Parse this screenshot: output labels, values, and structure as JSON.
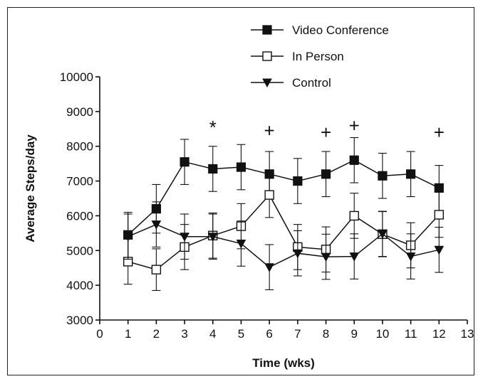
{
  "chart_data": {
    "type": "line",
    "title": "",
    "xlabel": "Time (wks)",
    "ylabel": "Average Steps/day",
    "xlim": [
      0,
      13
    ],
    "ylim": [
      3000,
      10000
    ],
    "x_ticks": [
      0,
      1,
      2,
      3,
      4,
      5,
      6,
      7,
      8,
      9,
      10,
      11,
      12,
      13
    ],
    "y_ticks": [
      3000,
      4000,
      5000,
      6000,
      7000,
      8000,
      9000,
      10000
    ],
    "grid": false,
    "legend_position": "top-right",
    "x": [
      1,
      2,
      3,
      4,
      5,
      6,
      7,
      8,
      9,
      10,
      11,
      12
    ],
    "series": [
      {
        "name": "Video Conference",
        "marker": "filled-square",
        "values": [
          5450,
          6200,
          7550,
          7350,
          7400,
          7200,
          7000,
          7200,
          7600,
          7150,
          7200,
          6800
        ],
        "errors": [
          650,
          700,
          650,
          650,
          650,
          650,
          650,
          650,
          650,
          650,
          650,
          650
        ]
      },
      {
        "name": "In Person",
        "marker": "open-square",
        "values": [
          4680,
          4450,
          5100,
          5430,
          5700,
          6600,
          5100,
          5030,
          6000,
          5470,
          5150,
          6030
        ],
        "errors": [
          650,
          600,
          650,
          650,
          650,
          650,
          650,
          650,
          650,
          650,
          650,
          650
        ]
      },
      {
        "name": "Control",
        "marker": "filled-triangle-down",
        "values": [
          5400,
          5750,
          5400,
          5400,
          5200,
          4520,
          4920,
          4820,
          4830,
          5480,
          4830,
          5020
        ],
        "errors": [
          650,
          650,
          650,
          650,
          650,
          650,
          650,
          650,
          650,
          650,
          650,
          650
        ]
      }
    ],
    "annotations": [
      {
        "x": 4,
        "y": 8550,
        "text": "*"
      },
      {
        "x": 6,
        "y": 8450,
        "text": "+"
      },
      {
        "x": 8,
        "y": 8400,
        "text": "+"
      },
      {
        "x": 9,
        "y": 8600,
        "text": "+"
      },
      {
        "x": 12,
        "y": 8400,
        "text": "+"
      }
    ]
  },
  "colors": {
    "line": "#111111",
    "fill": "#111111",
    "open_fill": "#ffffff"
  }
}
